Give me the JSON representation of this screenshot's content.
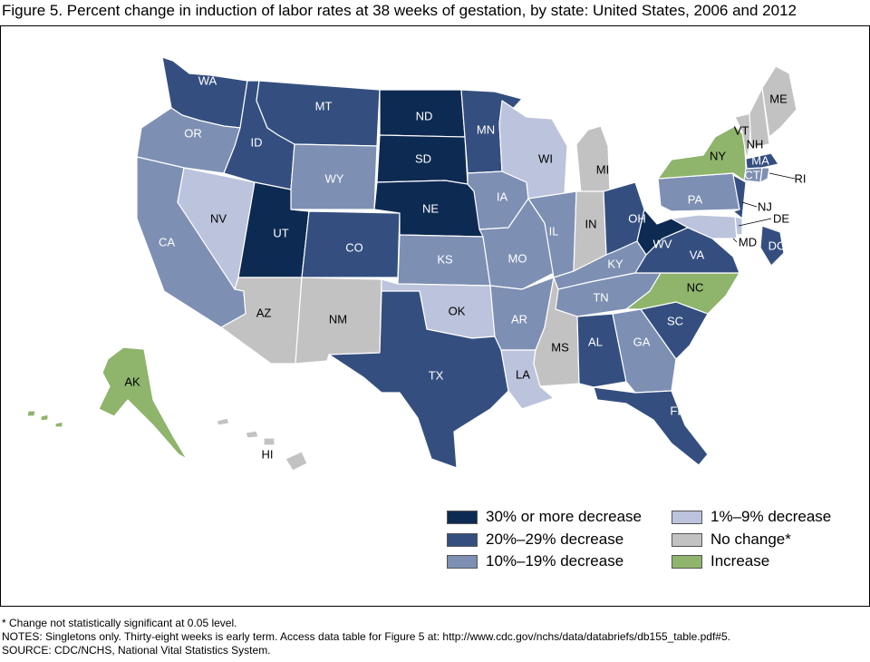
{
  "title": "Figure 5. Percent change in induction of labor rates at 38 weeks of gestation, by state: United States, 2006 and 2012",
  "categories": {
    "c30": {
      "label": "30% or more decrease",
      "color": "#0d2a52"
    },
    "c20": {
      "label": "20%–29% decrease",
      "color": "#344f7f"
    },
    "c10": {
      "label": "10%–19% decrease",
      "color": "#7d8fb3"
    },
    "c1": {
      "label": "1%–9% decrease",
      "color": "#bcc3dc"
    },
    "nc": {
      "label": "No change*",
      "color": "#c2c2c2"
    },
    "inc": {
      "label": "Increase",
      "color": "#8fb46c"
    }
  },
  "states": {
    "WA": "c20",
    "OR": "c10",
    "CA": "c10",
    "NV": "c1",
    "ID": "c20",
    "MT": "c20",
    "WY": "c10",
    "UT": "c30",
    "AZ": "nc",
    "CO": "c20",
    "NM": "nc",
    "ND": "c30",
    "SD": "c30",
    "NE": "c30",
    "KS": "c10",
    "OK": "c1",
    "TX": "c20",
    "MN": "c20",
    "IA": "c10",
    "MO": "c10",
    "AR": "c10",
    "LA": "c1",
    "WI": "c1",
    "IL": "c10",
    "MS": "nc",
    "MI": "nc",
    "IN": "nc",
    "OH": "c20",
    "KY": "c10",
    "TN": "c10",
    "AL": "c20",
    "GA": "c10",
    "FL": "c20",
    "SC": "c20",
    "NC": "inc",
    "VA": "c20",
    "WV": "c30",
    "PA": "c10",
    "NY": "inc",
    "VT": "nc",
    "NH": "nc",
    "ME": "nc",
    "MA": "c20",
    "CT": "c10",
    "RI": "c10",
    "NJ": "c20",
    "DE": "c1",
    "MD": "c1",
    "DC": "c20",
    "AK": "inc",
    "HI": "nc"
  },
  "notes": [
    "* Change not statistically significant at 0.05 level.",
    "NOTES: Singletons only. Thirty-eight weeks is early term. Access data table for Figure 5 at: http://www.cdc.gov/nchs/data/databriefs/db155_table.pdf#5.",
    "SOURCE: CDC/NCHS, National Vital Statistics System."
  ]
}
